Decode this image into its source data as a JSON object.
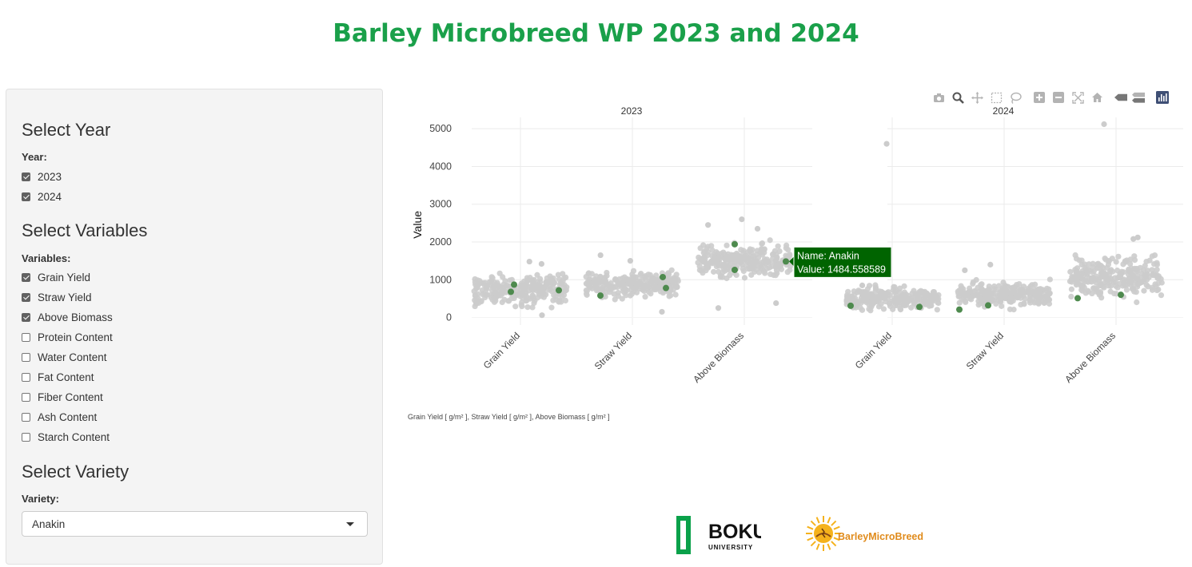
{
  "page_title": "Barley Microbreed WP 2023 and 2024",
  "sidebar": {
    "year_heading": "Select Year",
    "year_label": "Year:",
    "years": [
      {
        "label": "2023",
        "checked": true
      },
      {
        "label": "2024",
        "checked": true
      }
    ],
    "vars_heading": "Select Variables",
    "vars_label": "Variables:",
    "variables": [
      {
        "label": "Grain Yield",
        "checked": true
      },
      {
        "label": "Straw Yield",
        "checked": true
      },
      {
        "label": "Above Biomass",
        "checked": true
      },
      {
        "label": "Protein Content",
        "checked": false
      },
      {
        "label": "Water Content",
        "checked": false
      },
      {
        "label": "Fat Content",
        "checked": false
      },
      {
        "label": "Fiber Content",
        "checked": false
      },
      {
        "label": "Ash Content",
        "checked": false
      },
      {
        "label": "Starch Content",
        "checked": false
      }
    ],
    "variety_heading": "Select Variety",
    "variety_label": "Variety:",
    "variety_value": "Anakin"
  },
  "modebar_icons": [
    "camera-icon",
    "zoom-icon",
    "pan-icon",
    "box-select-icon",
    "lasso-icon",
    "zoom-in-icon",
    "zoom-out-icon",
    "autoscale-icon",
    "home-icon",
    "hover-closest-icon",
    "hover-compare-icon",
    "plotly-logo-icon"
  ],
  "chart_data": {
    "type": "scatter",
    "panels": [
      "2023",
      "2024"
    ],
    "categories": [
      "Grain Yield",
      "Straw Yield",
      "Above Biomass"
    ],
    "ylabel": "Value",
    "ylim": [
      -200,
      5300
    ],
    "yticks": [
      0,
      1000,
      2000,
      3000,
      4000,
      5000
    ],
    "grid": true,
    "background_color": "#cccccc",
    "highlight_color": "#4e8a4e",
    "background_ranges": {
      "2023": [
        [
          200,
          1250
        ],
        [
          400,
          1350
        ],
        [
          900,
          2100
        ]
      ],
      "2024": [
        [
          100,
          900
        ],
        [
          150,
          1050
        ],
        [
          300,
          1800
        ]
      ]
    },
    "background_outliers": {
      "2023": [
        [
          0,
          1480
        ],
        [
          0,
          1420
        ],
        [
          0,
          60
        ],
        [
          1,
          1650
        ],
        [
          1,
          1500
        ],
        [
          1,
          150
        ],
        [
          2,
          2600
        ],
        [
          2,
          2450
        ],
        [
          2,
          2350
        ],
        [
          2,
          380
        ],
        [
          2,
          250
        ]
      ],
      "2024": [
        [
          0,
          4600
        ],
        [
          0,
          850
        ],
        [
          1,
          1400
        ],
        [
          1,
          1250
        ],
        [
          2,
          5120
        ],
        [
          2,
          2120
        ],
        [
          2,
          2080
        ]
      ]
    },
    "highlighted_variety": "Anakin",
    "highlight_points": [
      {
        "panel": "2023",
        "category": "Grain Yield",
        "values": [
          870,
          680,
          720
        ]
      },
      {
        "panel": "2023",
        "category": "Straw Yield",
        "values": [
          580,
          1070,
          780
        ]
      },
      {
        "panel": "2023",
        "category": "Above Biomass",
        "values": [
          1940,
          1260,
          1484.558589
        ]
      },
      {
        "panel": "2024",
        "category": "Grain Yield",
        "values": [
          310,
          280
        ]
      },
      {
        "panel": "2024",
        "category": "Straw Yield",
        "values": [
          210,
          320
        ]
      },
      {
        "panel": "2024",
        "category": "Above Biomass",
        "values": [
          510,
          600
        ]
      }
    ],
    "hover": {
      "name_line": "Name: Anakin",
      "value_line": "Value: 1484.558589",
      "color": "#006400"
    }
  },
  "footnote": "Grain Yield [ g/m² ], Straw Yield [ g/m² ], Above Biomass [ g/m² ]",
  "logos": {
    "boku_main": "BOKU",
    "boku_sub": "UNIVERSITY",
    "bmb_text": "BarleyMicroBreed"
  }
}
